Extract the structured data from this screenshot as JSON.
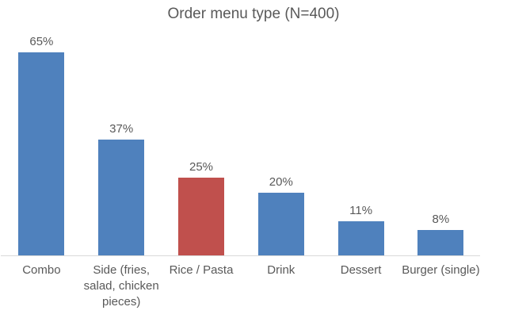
{
  "chart_data": {
    "type": "bar",
    "title": "Order menu type (N=400)",
    "categories": [
      "Combo",
      "Side (fries, salad, chicken pieces)",
      "Rice / Pasta",
      "Drink",
      "Dessert",
      "Burger (single)"
    ],
    "values": [
      65,
      37,
      25,
      20,
      11,
      8
    ],
    "data_labels": [
      "65%",
      "37%",
      "25%",
      "20%",
      "11%",
      "8%"
    ],
    "bar_colors": [
      "#4F81BD",
      "#4F81BD",
      "#C0504D",
      "#4F81BD",
      "#4F81BD",
      "#4F81BD"
    ],
    "xlabel": "",
    "ylabel": "",
    "ylim": [
      0,
      70
    ],
    "grid": false,
    "legend": "none",
    "highlighted_category": "Rice / Pasta",
    "colors": {
      "bar_default": "#4F81BD",
      "bar_highlight": "#C0504D",
      "text": "#595959",
      "axis_line": "#D9D9D9",
      "background": "#FFFFFF"
    }
  }
}
